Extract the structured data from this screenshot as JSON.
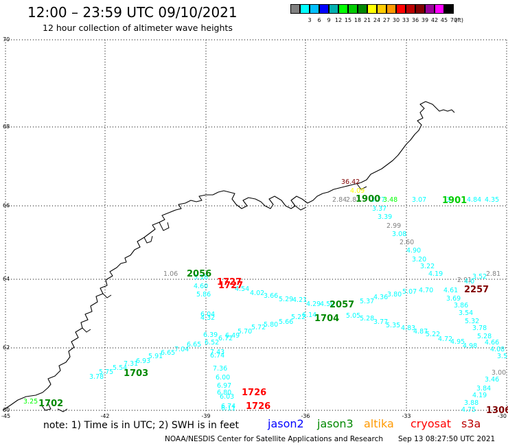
{
  "header": {
    "title": "12:00 – 23:59 UTC 09/10/2021",
    "subtitle": "12 hour collection of altimeter wave heights"
  },
  "legend": {
    "unit": "(ft)",
    "swatches": [
      {
        "label": "",
        "color": "#808080"
      },
      {
        "label": "3",
        "color": "#00ffff"
      },
      {
        "label": "6",
        "color": "#00c0ff"
      },
      {
        "label": "9",
        "color": "#0000ff"
      },
      {
        "label": "12",
        "color": "#00b0b0"
      },
      {
        "label": "15",
        "color": "#00ff00"
      },
      {
        "label": "18",
        "color": "#00cc00"
      },
      {
        "label": "21",
        "color": "#008800"
      },
      {
        "label": "24",
        "color": "#ffff00"
      },
      {
        "label": "27",
        "color": "#ffcc00"
      },
      {
        "label": "30",
        "color": "#ff9900"
      },
      {
        "label": "33",
        "color": "#ff0000"
      },
      {
        "label": "36",
        "color": "#bb0000"
      },
      {
        "label": "39",
        "color": "#800000"
      },
      {
        "label": "42",
        "color": "#990099"
      },
      {
        "label": "45",
        "color": "#ff00ff"
      },
      {
        "label": "70",
        "color": "#000000"
      }
    ]
  },
  "axes": {
    "lat_labels": [
      "70",
      "68",
      "66",
      "64",
      "62",
      "60"
    ],
    "lon_labels": [
      "-45",
      "-42",
      "-39",
      "-36",
      "-33",
      "-30"
    ]
  },
  "passes": [
    {
      "time": "1900",
      "color": "#008800"
    },
    {
      "time": "1901",
      "color": "#00cc00"
    },
    {
      "time": "2056",
      "color": "#008800"
    },
    {
      "time": "1727",
      "color": "#ff0000"
    },
    {
      "time": "1727",
      "color": "#ff0000"
    },
    {
      "time": "2257",
      "color": "#800000"
    },
    {
      "time": "2057",
      "color": "#008800"
    },
    {
      "time": "1704",
      "color": "#008800"
    },
    {
      "time": "1703",
      "color": "#008800"
    },
    {
      "time": "1702",
      "color": "#008800"
    },
    {
      "time": "1726",
      "color": "#ff0000"
    },
    {
      "time": "1726",
      "color": "#ff0000"
    },
    {
      "time": "1306",
      "color": "#800000"
    }
  ],
  "observations": [
    {
      "v": "36.42",
      "c": "#800000"
    },
    {
      "v": "4.09",
      "c": "#ffff00"
    },
    {
      "v": "2.84",
      "c": "#808080"
    },
    {
      "v": "2.83",
      "c": "#808080"
    },
    {
      "v": "3.77",
      "c": "#00ffff"
    },
    {
      "v": "3.48",
      "c": "#00ff00"
    },
    {
      "v": "3.07",
      "c": "#00ffff"
    },
    {
      "v": "4.84",
      "c": "#00ffff"
    },
    {
      "v": "4.35",
      "c": "#00ffff"
    },
    {
      "v": "3",
      "c": "#00ffff"
    },
    {
      "v": "3.37",
      "c": "#00ffff"
    },
    {
      "v": "3.39",
      "c": "#00ffff"
    },
    {
      "v": "2.99",
      "c": "#808080"
    },
    {
      "v": "3.08",
      "c": "#00ffff"
    },
    {
      "v": "2.60",
      "c": "#808080"
    },
    {
      "v": "4.90",
      "c": "#00ffff"
    },
    {
      "v": "3.20",
      "c": "#00ffff"
    },
    {
      "v": "3.22",
      "c": "#00ffff"
    },
    {
      "v": "4.19",
      "c": "#00ffff"
    },
    {
      "v": "3.52",
      "c": "#00ffff"
    },
    {
      "v": "2.81",
      "c": "#808080"
    },
    {
      "v": "2.91",
      "c": "#808080"
    },
    {
      "v": "4.0",
      "c": "#00ffff"
    },
    {
      "v": "4.70",
      "c": "#00ffff"
    },
    {
      "v": "4.61",
      "c": "#00ffff"
    },
    {
      "v": "3.69",
      "c": "#00ffff"
    },
    {
      "v": "3.86",
      "c": "#00ffff"
    },
    {
      "v": "3.54",
      "c": "#00ffff"
    },
    {
      "v": "5.32",
      "c": "#00ffff"
    },
    {
      "v": "3.78",
      "c": "#00ffff"
    },
    {
      "v": "5.28",
      "c": "#00ffff"
    },
    {
      "v": "4.66",
      "c": "#00ffff"
    },
    {
      "v": "4.08",
      "c": "#00ffff"
    },
    {
      "v": "3.5",
      "c": "#00ffff"
    },
    {
      "v": "3.00",
      "c": "#808080"
    },
    {
      "v": "3.46",
      "c": "#00ffff"
    },
    {
      "v": "3.84",
      "c": "#00ffff"
    },
    {
      "v": "4.19",
      "c": "#00ffff"
    },
    {
      "v": "3.88",
      "c": "#00ffff"
    },
    {
      "v": "4.75",
      "c": "#00ffff"
    },
    {
      "v": "1.06",
      "c": "#808080"
    },
    {
      "v": "3.18",
      "c": "#00ffff"
    },
    {
      "v": "4.60",
      "c": "#00ffff"
    },
    {
      "v": "4.54",
      "c": "#00ffff"
    },
    {
      "v": "4.02",
      "c": "#00ffff"
    },
    {
      "v": "3.66",
      "c": "#00ffff"
    },
    {
      "v": "5.29",
      "c": "#00ffff"
    },
    {
      "v": "4.21",
      "c": "#00ffff"
    },
    {
      "v": "4.29",
      "c": "#00ffff"
    },
    {
      "v": "4.50",
      "c": "#00ffff"
    },
    {
      "v": "5.37",
      "c": "#00ffff"
    },
    {
      "v": "4.36",
      "c": "#00ffff"
    },
    {
      "v": "3.80",
      "c": "#00ffff"
    },
    {
      "v": "5.07",
      "c": "#00ffff"
    },
    {
      "v": "5.86",
      "c": "#00ffff"
    },
    {
      "v": "6.04",
      "c": "#00ffff"
    },
    {
      "v": "4.32",
      "c": "#00ffff"
    },
    {
      "v": "6.39",
      "c": "#00ffff"
    },
    {
      "v": "6.72",
      "c": "#00ffff"
    },
    {
      "v": "6.52",
      "c": "#00ffff"
    },
    {
      "v": "6.49",
      "c": "#00ffff"
    },
    {
      "v": "5.70",
      "c": "#00ffff"
    },
    {
      "v": "5.72",
      "c": "#00ffff"
    },
    {
      "v": "5.80",
      "c": "#00ffff"
    },
    {
      "v": "5.66",
      "c": "#00ffff"
    },
    {
      "v": "5.22",
      "c": "#00ffff"
    },
    {
      "v": "6.14",
      "c": "#00ffff"
    },
    {
      "v": "5.05",
      "c": "#00ffff"
    },
    {
      "v": "5.28",
      "c": "#00ffff"
    },
    {
      "v": "3.77",
      "c": "#00ffff"
    },
    {
      "v": "5.35",
      "c": "#00ffff"
    },
    {
      "v": "4.83",
      "c": "#00ffff"
    },
    {
      "v": "4.87",
      "c": "#00ffff"
    },
    {
      "v": "5.22",
      "c": "#00ffff"
    },
    {
      "v": "4.72",
      "c": "#00ffff"
    },
    {
      "v": "4.95",
      "c": "#00ffff"
    },
    {
      "v": "4.98",
      "c": "#00ffff"
    },
    {
      "v": "6.65",
      "c": "#00ffff"
    },
    {
      "v": "7.04",
      "c": "#00ffff"
    },
    {
      "v": "6.65",
      "c": "#00ffff"
    },
    {
      "v": "5.91",
      "c": "#00ffff"
    },
    {
      "v": "6.93",
      "c": "#00ffff"
    },
    {
      "v": "7.31",
      "c": "#00ffff"
    },
    {
      "v": "5.54",
      "c": "#00ffff"
    },
    {
      "v": "5.75",
      "c": "#00ffff"
    },
    {
      "v": "3.78",
      "c": "#00ffff"
    },
    {
      "v": "7.43",
      "c": "#00ffff"
    },
    {
      "v": "6.74",
      "c": "#00ffff"
    },
    {
      "v": "7.36",
      "c": "#00ffff"
    },
    {
      "v": "6.00",
      "c": "#00ffff"
    },
    {
      "v": "6.97",
      "c": "#00ffff"
    },
    {
      "v": "6.80",
      "c": "#00ffff"
    },
    {
      "v": "6.03",
      "c": "#00ffff"
    },
    {
      "v": "6.74",
      "c": "#00ffff"
    },
    {
      "v": "6.11",
      "c": "#00ffff"
    },
    {
      "v": "3.25",
      "c": "#00ff00"
    }
  ],
  "notes": "note:  1) Time is in UTC; 2) SWH is in feet",
  "satellites": [
    {
      "name": "jason2",
      "color": "#0000ff"
    },
    {
      "name": "jason3",
      "color": "#008800"
    },
    {
      "name": "altika",
      "color": "#ff9900"
    },
    {
      "name": "cryosat",
      "color": "#ff0000"
    },
    {
      "name": "s3a",
      "color": "#bb0000"
    }
  ],
  "footer": {
    "credit": "NOAA/NESDIS Center for Satellite Applications and Research",
    "timestamp": "Sep 13 08:27:50 UTC 2021"
  }
}
